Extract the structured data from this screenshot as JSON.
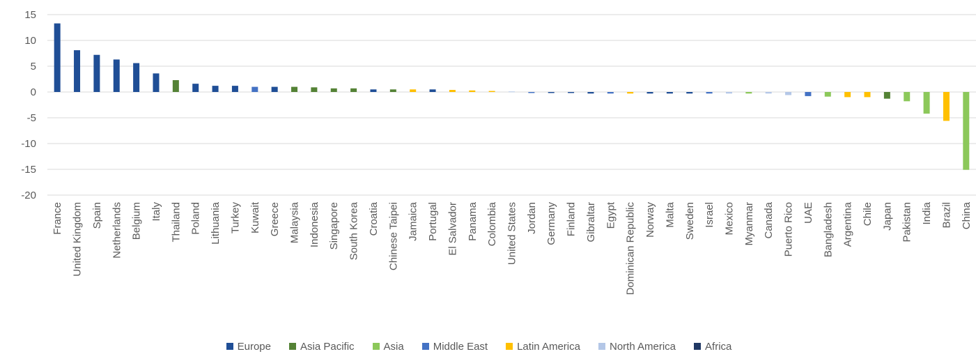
{
  "chart_data": {
    "type": "bar",
    "title": "",
    "xlabel": "",
    "ylabel": "",
    "ylim": [
      -20,
      15
    ],
    "yticks": [
      15,
      10,
      5,
      0,
      -5,
      -10,
      -15,
      -20
    ],
    "grid": true,
    "legend_position": "bottom",
    "regions": [
      {
        "name": "Europe",
        "color": "#1f4e96"
      },
      {
        "name": "Asia Pacific",
        "color": "#548235"
      },
      {
        "name": "Asia",
        "color": "#8cc85a"
      },
      {
        "name": "Middle East",
        "color": "#4472c4"
      },
      {
        "name": "Latin America",
        "color": "#ffc000"
      },
      {
        "name": "North America",
        "color": "#b4c7e7"
      },
      {
        "name": "Africa",
        "color": "#203864"
      }
    ],
    "categories": [
      "France",
      "United Kingdom",
      "Spain",
      "Netherlands",
      "Belgium",
      "Italy",
      "Thailand",
      "Poland",
      "Lithuania",
      "Turkey",
      "Kuwait",
      "Greece",
      "Malaysia",
      "Indonesia",
      "Singapore",
      "South Korea",
      "Croatia",
      "Chinese Taipei",
      "Jamaica",
      "Portugal",
      "El Salvador",
      "Panama",
      "Colombia",
      "United States",
      "Jordan",
      "Germany",
      "Finland",
      "Gibraltar",
      "Egypt",
      "Dominican Republic",
      "Norway",
      "Malta",
      "Sweden",
      "Israel",
      "Mexico",
      "Myanmar",
      "Canada",
      "Puerto Rico",
      "UAE",
      "Bangladesh",
      "Argentina",
      "Chile",
      "Japan",
      "Pakistan",
      "India",
      "Brazil",
      "China"
    ],
    "values": [
      13.3,
      8.1,
      7.2,
      6.3,
      5.6,
      3.6,
      2.3,
      1.6,
      1.2,
      1.2,
      1.0,
      1.0,
      1.0,
      0.9,
      0.7,
      0.7,
      0.5,
      0.5,
      0.5,
      0.5,
      0.4,
      0.3,
      0.2,
      0.1,
      -0.2,
      -0.2,
      -0.2,
      -0.3,
      -0.3,
      -0.3,
      -0.3,
      -0.3,
      -0.3,
      -0.3,
      -0.3,
      -0.3,
      -0.3,
      -0.6,
      -0.8,
      -0.9,
      -1.0,
      -1.0,
      -1.3,
      -1.8,
      -4.2,
      -5.6,
      -15.1
    ],
    "region_of": [
      "Europe",
      "Europe",
      "Europe",
      "Europe",
      "Europe",
      "Europe",
      "Asia Pacific",
      "Europe",
      "Europe",
      "Europe",
      "Middle East",
      "Europe",
      "Asia Pacific",
      "Asia Pacific",
      "Asia Pacific",
      "Asia Pacific",
      "Europe",
      "Asia Pacific",
      "Latin America",
      "Europe",
      "Latin America",
      "Latin America",
      "Latin America",
      "North America",
      "Middle East",
      "Europe",
      "Europe",
      "Europe",
      "Middle East",
      "Latin America",
      "Europe",
      "Europe",
      "Europe",
      "Middle East",
      "North America",
      "Asia",
      "North America",
      "North America",
      "Middle East",
      "Asia",
      "Latin America",
      "Latin America",
      "Asia Pacific",
      "Asia",
      "Asia",
      "Latin America",
      "Asia"
    ]
  }
}
